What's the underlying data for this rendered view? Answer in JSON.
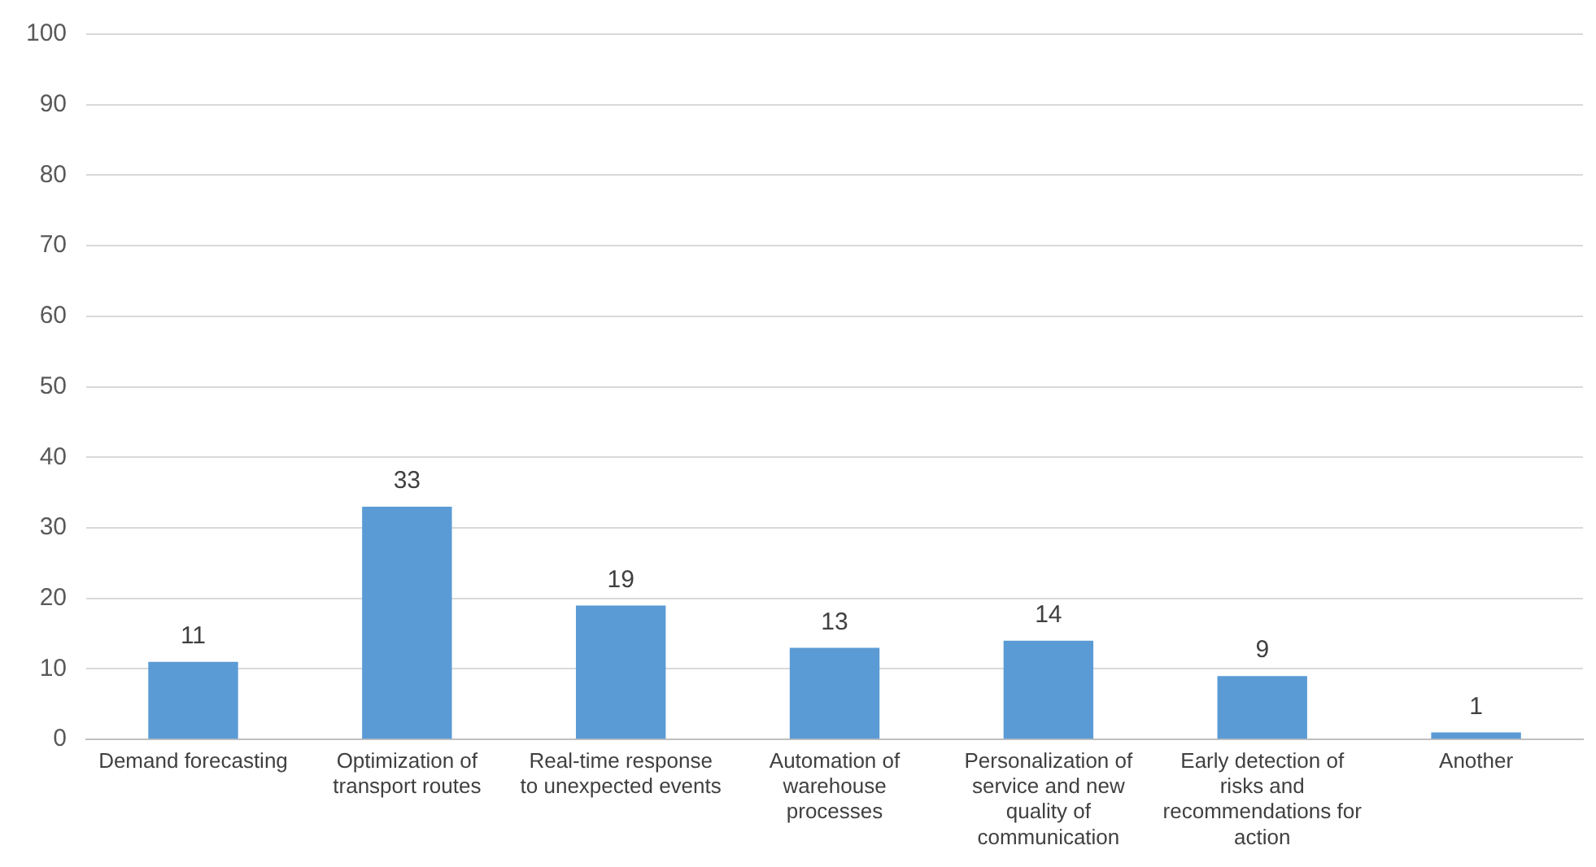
{
  "chart_data": {
    "type": "bar",
    "categories": [
      "Demand forecasting",
      "Optimization of transport routes",
      "Real-time response to unexpected events",
      "Automation of warehouse processes",
      "Personalization of service and new quality of communication",
      "Early detection of risks and recommendations for action",
      "Another"
    ],
    "values": [
      11,
      33,
      19,
      13,
      14,
      9,
      1
    ],
    "color": "#5b9bd5",
    "ylim": [
      0,
      100
    ],
    "yticks": [
      0,
      10,
      20,
      30,
      40,
      50,
      60,
      70,
      80,
      90,
      100
    ],
    "grid": "y",
    "data_labels": true,
    "legend": false
  }
}
